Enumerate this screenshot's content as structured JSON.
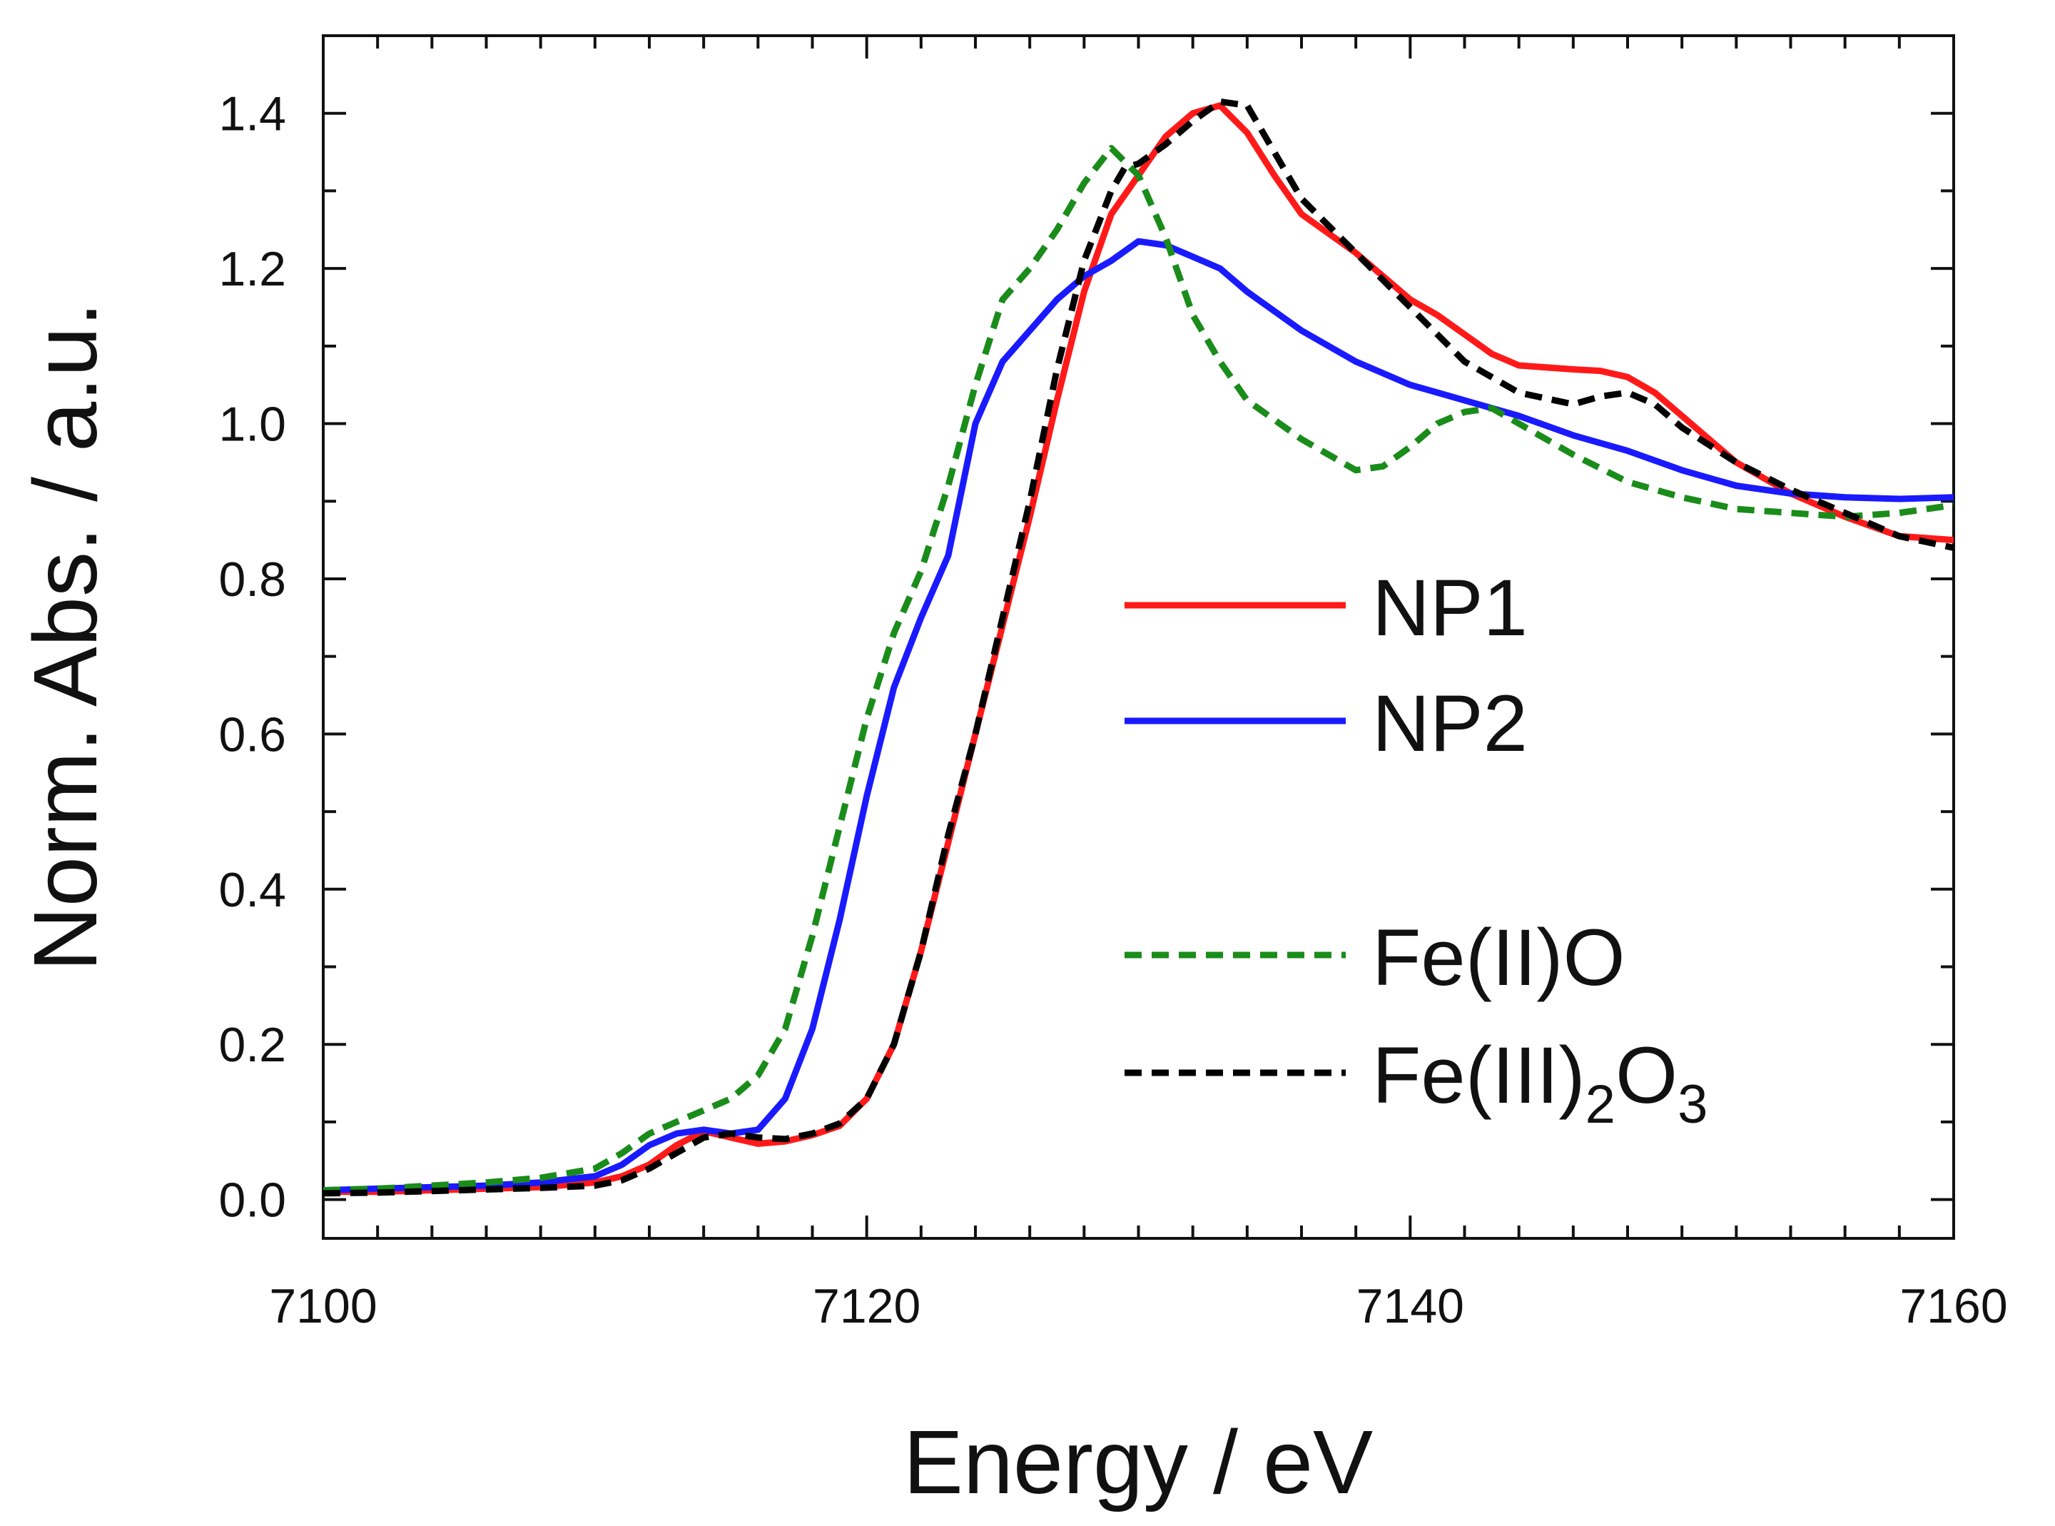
{
  "chart_data": {
    "type": "line",
    "title": "",
    "xlabel": "Energy / eV",
    "ylabel": "Norm. Abs. / a.u.",
    "xlim": [
      7100,
      7160
    ],
    "ylim": [
      -0.05,
      1.5
    ],
    "xticks": [
      7100,
      7120,
      7140,
      7160
    ],
    "xtick_labels": [
      "7100",
      "7120",
      "7140",
      "7160"
    ],
    "yticks": [
      0.0,
      0.2,
      0.4,
      0.6,
      0.8,
      1.0,
      1.2,
      1.4
    ],
    "ytick_labels": [
      "0.0",
      "0.2",
      "0.4",
      "0.6",
      "0.8",
      "1.0",
      "1.2",
      "1.4"
    ],
    "legend_position": "right-center",
    "series": [
      {
        "name": "NP1",
        "legend_main": "NP1",
        "legend_sub1": "",
        "legend_sub2": "",
        "color": "#ff1a1a",
        "dash": "solid",
        "x": [
          7100,
          7102,
          7104,
          7106,
          7108,
          7110,
          7111,
          7112,
          7113,
          7114,
          7115,
          7116,
          7117,
          7118,
          7119,
          7120,
          7121,
          7122,
          7123,
          7124,
          7125,
          7126,
          7127,
          7128,
          7129,
          7130,
          7131,
          7132,
          7133,
          7134,
          7135,
          7136,
          7138,
          7140,
          7141,
          7142,
          7143,
          7144,
          7146,
          7147,
          7148,
          7149,
          7150,
          7152,
          7154,
          7156,
          7158,
          7160
        ],
        "y": [
          0.01,
          0.01,
          0.012,
          0.014,
          0.016,
          0.022,
          0.03,
          0.045,
          0.07,
          0.088,
          0.08,
          0.072,
          0.075,
          0.083,
          0.095,
          0.13,
          0.2,
          0.32,
          0.46,
          0.6,
          0.74,
          0.88,
          1.03,
          1.17,
          1.27,
          1.32,
          1.37,
          1.4,
          1.41,
          1.375,
          1.32,
          1.27,
          1.22,
          1.16,
          1.14,
          1.115,
          1.09,
          1.075,
          1.07,
          1.068,
          1.06,
          1.04,
          1.01,
          0.95,
          0.91,
          0.88,
          0.855,
          0.85
        ]
      },
      {
        "name": "NP2",
        "legend_main": "NP2",
        "legend_sub1": "",
        "legend_sub2": "",
        "color": "#1a1aff",
        "dash": "solid",
        "x": [
          7100,
          7102,
          7104,
          7106,
          7108,
          7110,
          7111,
          7112,
          7113,
          7114,
          7115,
          7116,
          7117,
          7118,
          7119,
          7120,
          7121,
          7122,
          7123,
          7124,
          7125,
          7126,
          7127,
          7128,
          7129,
          7130,
          7131,
          7132,
          7133,
          7134,
          7136,
          7138,
          7140,
          7142,
          7144,
          7146,
          7148,
          7150,
          7152,
          7154,
          7156,
          7158,
          7160
        ],
        "y": [
          0.012,
          0.014,
          0.016,
          0.018,
          0.022,
          0.03,
          0.045,
          0.07,
          0.085,
          0.09,
          0.085,
          0.09,
          0.13,
          0.22,
          0.36,
          0.52,
          0.66,
          0.75,
          0.83,
          1.0,
          1.08,
          1.12,
          1.16,
          1.19,
          1.21,
          1.235,
          1.23,
          1.215,
          1.2,
          1.17,
          1.12,
          1.08,
          1.05,
          1.03,
          1.01,
          0.985,
          0.965,
          0.94,
          0.92,
          0.91,
          0.905,
          0.903,
          0.905
        ]
      },
      {
        "name": "Fe(II)O",
        "legend_main": "Fe(II)O",
        "legend_sub1": "",
        "legend_sub2": "",
        "color": "#1a8c1a",
        "dash": "dashed",
        "x": [
          7100,
          7102,
          7104,
          7106,
          7108,
          7110,
          7111,
          7112,
          7113,
          7114,
          7115,
          7116,
          7117,
          7118,
          7119,
          7120,
          7121,
          7122,
          7123,
          7124,
          7125,
          7126,
          7127,
          7128,
          7129,
          7130,
          7131,
          7132,
          7133,
          7134,
          7136,
          7138,
          7139,
          7140,
          7141,
          7142,
          7143,
          7144,
          7146,
          7148,
          7150,
          7152,
          7154,
          7156,
          7158,
          7160
        ],
        "y": [
          0.012,
          0.014,
          0.018,
          0.022,
          0.028,
          0.04,
          0.06,
          0.085,
          0.1,
          0.115,
          0.13,
          0.16,
          0.22,
          0.34,
          0.48,
          0.62,
          0.73,
          0.81,
          0.92,
          1.05,
          1.16,
          1.2,
          1.25,
          1.31,
          1.355,
          1.32,
          1.24,
          1.14,
          1.08,
          1.03,
          0.98,
          0.94,
          0.945,
          0.97,
          1.0,
          1.015,
          1.02,
          1.0,
          0.96,
          0.925,
          0.905,
          0.89,
          0.885,
          0.88,
          0.885,
          0.895
        ]
      },
      {
        "name": "Fe(III)2O3",
        "legend_main": "Fe(III)",
        "legend_sub1": "2",
        "legend_mid": "O",
        "legend_sub2": "3",
        "color": "#000000",
        "dash": "dashed",
        "x": [
          7100,
          7102,
          7104,
          7106,
          7108,
          7110,
          7111,
          7112,
          7113,
          7114,
          7115,
          7116,
          7117,
          7118,
          7119,
          7120,
          7121,
          7122,
          7123,
          7124,
          7125,
          7126,
          7127,
          7128,
          7129,
          7129.5,
          7130,
          7131,
          7132,
          7133,
          7134,
          7135,
          7136,
          7138,
          7140,
          7142,
          7144,
          7146,
          7147,
          7148,
          7149,
          7150,
          7152,
          7154,
          7156,
          7158,
          7160
        ],
        "y": [
          0.008,
          0.009,
          0.011,
          0.013,
          0.015,
          0.018,
          0.025,
          0.04,
          0.06,
          0.08,
          0.085,
          0.08,
          0.078,
          0.085,
          0.098,
          0.13,
          0.2,
          0.32,
          0.47,
          0.6,
          0.75,
          0.9,
          1.07,
          1.21,
          1.3,
          1.33,
          1.335,
          1.36,
          1.39,
          1.415,
          1.41,
          1.35,
          1.29,
          1.22,
          1.15,
          1.08,
          1.04,
          1.025,
          1.035,
          1.04,
          1.025,
          0.995,
          0.95,
          0.915,
          0.885,
          0.855,
          0.84
        ]
      }
    ]
  }
}
